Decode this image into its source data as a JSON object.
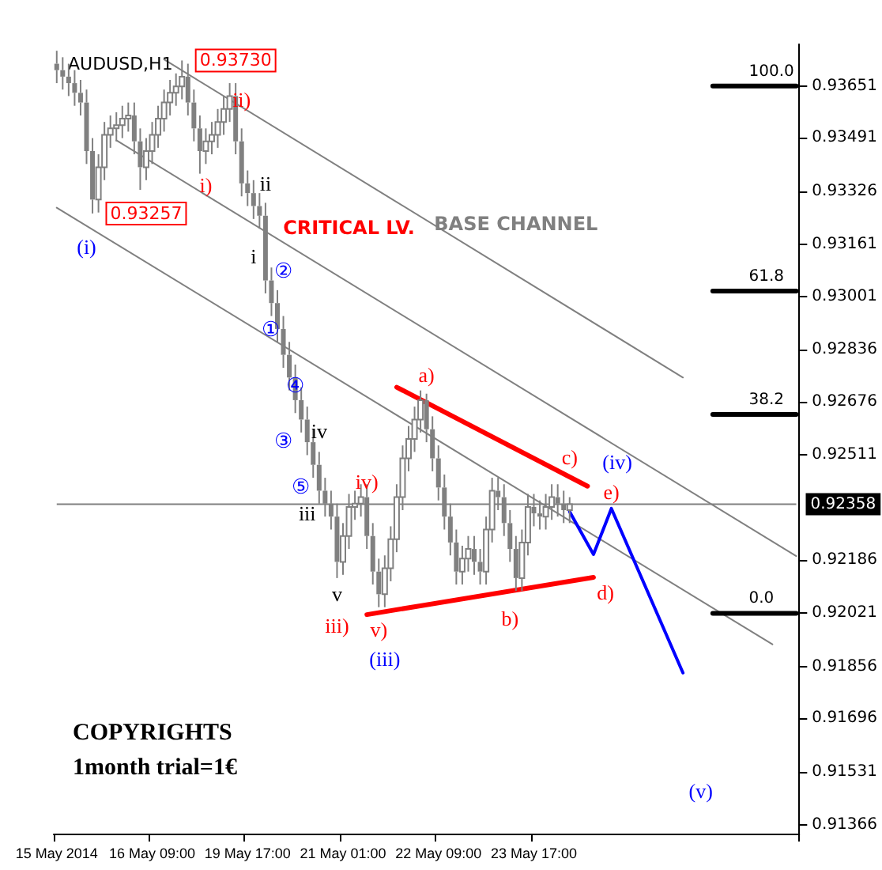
{
  "chart_data": {
    "type": "candlestick",
    "title": "AUDUSD,H1",
    "color": "#808080",
    "categories": [
      "15 May 2014",
      null,
      null,
      null,
      null,
      null,
      null,
      null,
      null,
      null,
      null,
      null,
      null,
      null,
      null,
      null,
      "16 May 09:00",
      null,
      null,
      null,
      null,
      null,
      null,
      null,
      null,
      null,
      null,
      null,
      null,
      null,
      null,
      null,
      "19 May 17:00",
      null,
      null,
      null,
      null,
      null,
      null,
      null,
      null,
      null,
      null,
      null,
      null,
      null,
      null,
      null,
      "21 May 01:00",
      null,
      null,
      null,
      null,
      null,
      null,
      null,
      null,
      null,
      null,
      null,
      null,
      null,
      null,
      null,
      "22 May 09:00",
      null,
      null,
      null,
      null,
      null,
      null,
      null,
      null,
      null,
      null,
      null,
      null,
      null,
      null,
      null,
      "23 May 17:00",
      null,
      null,
      null,
      null,
      null,
      null,
      null,
      null,
      null,
      null,
      null,
      null,
      null,
      null,
      null,
      null,
      null,
      null,
      null,
      null,
      null,
      null,
      null,
      null,
      null,
      null,
      null,
      null,
      null,
      null,
      null,
      null,
      null,
      null,
      null,
      null,
      null,
      null,
      null,
      null,
      null,
      null,
      null,
      null
    ],
    "ohlc": [
      [
        0.9372,
        0.9376,
        0.9366,
        0.937
      ],
      [
        0.937,
        0.9374,
        0.9364,
        0.9368
      ],
      [
        0.9368,
        0.9372,
        0.9362,
        0.9366
      ],
      [
        0.9366,
        0.937,
        0.9359,
        0.9363
      ],
      [
        0.9363,
        0.9367,
        0.9356,
        0.936
      ],
      [
        0.936,
        0.9364,
        0.9341,
        0.9345
      ],
      [
        0.9345,
        0.9349,
        0.93257,
        0.933
      ],
      [
        0.933,
        0.9344,
        0.9326,
        0.934
      ],
      [
        0.934,
        0.9354,
        0.9336,
        0.935
      ],
      [
        0.935,
        0.9356,
        0.9346,
        0.9352
      ],
      [
        0.9352,
        0.9357,
        0.9348,
        0.9353
      ],
      [
        0.9353,
        0.9359,
        0.9349,
        0.9355
      ],
      [
        0.9355,
        0.936,
        0.9351,
        0.9356
      ],
      [
        0.9356,
        0.936,
        0.9344,
        0.9348
      ],
      [
        0.9348,
        0.9352,
        0.9333,
        0.934
      ],
      [
        0.934,
        0.9349,
        0.9336,
        0.9345
      ],
      [
        0.9345,
        0.9354,
        0.9341,
        0.935
      ],
      [
        0.935,
        0.9359,
        0.9346,
        0.9355
      ],
      [
        0.9355,
        0.9364,
        0.9351,
        0.936
      ],
      [
        0.936,
        0.9367,
        0.9356,
        0.9363
      ],
      [
        0.9363,
        0.9369,
        0.9359,
        0.9365
      ],
      [
        0.9365,
        0.9373,
        0.9361,
        0.9368
      ],
      [
        0.9368,
        0.9372,
        0.9356,
        0.936
      ],
      [
        0.936,
        0.9364,
        0.9348,
        0.9352
      ],
      [
        0.9352,
        0.9356,
        0.9338,
        0.9345
      ],
      [
        0.9345,
        0.9352,
        0.9341,
        0.9348
      ],
      [
        0.9348,
        0.9354,
        0.9344,
        0.935
      ],
      [
        0.935,
        0.9358,
        0.9346,
        0.9354
      ],
      [
        0.9354,
        0.9362,
        0.935,
        0.9358
      ],
      [
        0.9358,
        0.9366,
        0.9354,
        0.9362
      ],
      [
        0.9362,
        0.9366,
        0.9344,
        0.9348
      ],
      [
        0.9348,
        0.9352,
        0.9331,
        0.9335
      ],
      [
        0.9335,
        0.9339,
        0.9328,
        0.9332
      ],
      [
        0.9332,
        0.9336,
        0.9324,
        0.9328
      ],
      [
        0.9328,
        0.9332,
        0.9321,
        0.9325
      ],
      [
        0.9325,
        0.9329,
        0.9301,
        0.9305
      ],
      [
        0.9305,
        0.9309,
        0.9294,
        0.9298
      ],
      [
        0.9298,
        0.9302,
        0.9286,
        0.929
      ],
      [
        0.929,
        0.9294,
        0.9278,
        0.9282
      ],
      [
        0.9282,
        0.9286,
        0.9271,
        0.9275
      ],
      [
        0.9275,
        0.9279,
        0.9264,
        0.9268
      ],
      [
        0.9268,
        0.9272,
        0.9258,
        0.9262
      ],
      [
        0.9262,
        0.9266,
        0.9251,
        0.9255
      ],
      [
        0.9255,
        0.9259,
        0.9244,
        0.9248
      ],
      [
        0.9248,
        0.9252,
        0.9236,
        0.924
      ],
      [
        0.924,
        0.9244,
        0.9232,
        0.9236
      ],
      [
        0.9236,
        0.924,
        0.9228,
        0.9232
      ],
      [
        0.9232,
        0.9236,
        0.9213,
        0.9218
      ],
      [
        0.9218,
        0.923,
        0.9214,
        0.9226
      ],
      [
        0.9226,
        0.9239,
        0.9222,
        0.9235
      ],
      [
        0.9235,
        0.924,
        0.9231,
        0.9236
      ],
      [
        0.9236,
        0.9242,
        0.9232,
        0.9238
      ],
      [
        0.9238,
        0.9242,
        0.9222,
        0.9226
      ],
      [
        0.9226,
        0.923,
        0.9211,
        0.9215
      ],
      [
        0.9215,
        0.9219,
        0.9204,
        0.9208
      ],
      [
        0.9208,
        0.922,
        0.9204,
        0.9216
      ],
      [
        0.9216,
        0.9229,
        0.9212,
        0.9225
      ],
      [
        0.9225,
        0.9242,
        0.9221,
        0.9238
      ],
      [
        0.9238,
        0.9254,
        0.9234,
        0.925
      ],
      [
        0.925,
        0.926,
        0.9246,
        0.9256
      ],
      [
        0.9256,
        0.9266,
        0.9252,
        0.9262
      ],
      [
        0.9262,
        0.9271,
        0.9258,
        0.9268
      ],
      [
        0.9268,
        0.927,
        0.9255,
        0.9259
      ],
      [
        0.9259,
        0.9263,
        0.9246,
        0.925
      ],
      [
        0.925,
        0.9254,
        0.9237,
        0.9241
      ],
      [
        0.9241,
        0.9245,
        0.9228,
        0.9232
      ],
      [
        0.9232,
        0.9236,
        0.922,
        0.9224
      ],
      [
        0.9224,
        0.9228,
        0.9211,
        0.9215
      ],
      [
        0.9215,
        0.9223,
        0.9211,
        0.9219
      ],
      [
        0.9219,
        0.9226,
        0.9215,
        0.9222
      ],
      [
        0.9222,
        0.9226,
        0.9214,
        0.9218
      ],
      [
        0.9218,
        0.9222,
        0.9211,
        0.9215
      ],
      [
        0.9215,
        0.9232,
        0.9211,
        0.9228
      ],
      [
        0.9228,
        0.9244,
        0.9224,
        0.924
      ],
      [
        0.924,
        0.9244,
        0.9234,
        0.9238
      ],
      [
        0.9238,
        0.9242,
        0.9226,
        0.923
      ],
      [
        0.923,
        0.9234,
        0.9218,
        0.9222
      ],
      [
        0.9222,
        0.9226,
        0.9209,
        0.9213
      ],
      [
        0.9213,
        0.9228,
        0.9209,
        0.9224
      ],
      [
        0.9224,
        0.9239,
        0.922,
        0.9235
      ],
      [
        0.9235,
        0.9239,
        0.9229,
        0.9233
      ],
      [
        0.9233,
        0.9237,
        0.9228,
        0.9232
      ],
      [
        0.9232,
        0.9239,
        0.9228,
        0.9235
      ],
      [
        0.9235,
        0.9242,
        0.9231,
        0.9238
      ],
      [
        0.9238,
        0.9242,
        0.9232,
        0.9236
      ],
      [
        0.9236,
        0.924,
        0.923,
        0.9234
      ],
      [
        0.9234,
        0.9238,
        0.923,
        0.92358
      ],
      null,
      null,
      null,
      null,
      null,
      null,
      null,
      null,
      null,
      null,
      null,
      null,
      null,
      null,
      null,
      null,
      null,
      null,
      null,
      null,
      null,
      null,
      null,
      null,
      null,
      null,
      null,
      null,
      null,
      null,
      null,
      null,
      null,
      null,
      null,
      null,
      null,
      null
    ],
    "series": [
      {
        "type": "line",
        "color": "#808080",
        "values": [
          null,
          null,
          null,
          null,
          null,
          null,
          null,
          null,
          null,
          null,
          null,
          null,
          null,
          null,
          null,
          null,
          null,
          null,
          0.93733,
          null,
          null,
          null,
          null,
          null,
          null,
          null,
          null,
          null,
          null,
          null,
          null,
          null,
          null,
          null,
          null,
          null,
          null,
          null,
          null,
          null,
          null,
          null,
          null,
          null,
          null,
          null,
          null,
          null,
          null,
          null,
          null,
          null,
          null,
          null,
          null,
          null,
          null,
          null,
          null,
          null,
          null,
          null,
          null,
          null,
          null,
          null,
          null,
          null,
          null,
          null,
          null,
          null,
          null,
          null,
          null,
          null,
          null,
          null,
          null,
          null,
          null,
          null,
          null,
          null,
          null,
          null,
          null,
          null,
          null,
          null,
          null,
          null,
          null,
          null,
          null,
          null,
          null,
          null,
          null,
          null,
          null,
          null,
          null,
          null,
          null,
          0.9275,
          null,
          null,
          null,
          null,
          null,
          null,
          null,
          null,
          null,
          null,
          null,
          null,
          null,
          null,
          null,
          null,
          null,
          null,
          null
        ]
      },
      {
        "type": "line",
        "color": "#808080",
        "values": [
          null,
          null,
          null,
          null,
          null,
          null,
          null,
          null,
          null,
          null,
          0.93483,
          null,
          null,
          null,
          null,
          null,
          null,
          null,
          null,
          null,
          null,
          null,
          null,
          null,
          null,
          null,
          null,
          null,
          null,
          null,
          null,
          null,
          null,
          null,
          null,
          null,
          null,
          null,
          null,
          null,
          null,
          null,
          null,
          null,
          null,
          null,
          null,
          null,
          null,
          null,
          null,
          null,
          null,
          null,
          null,
          null,
          null,
          null,
          null,
          null,
          null,
          null,
          null,
          null,
          null,
          null,
          null,
          null,
          null,
          null,
          null,
          null,
          null,
          null,
          null,
          null,
          null,
          null,
          null,
          null,
          null,
          null,
          null,
          null,
          null,
          null,
          null,
          null,
          null,
          null,
          null,
          null,
          null,
          null,
          null,
          null,
          null,
          null,
          null,
          null,
          null,
          null,
          null,
          null,
          null,
          null,
          null,
          null,
          null,
          null,
          null,
          null,
          null,
          null,
          null,
          null,
          null,
          null,
          null,
          null,
          null,
          null,
          null,
          null,
          0.92198
        ]
      },
      {
        "type": "line",
        "color": "#808080",
        "values": [
          0.93275,
          null,
          null,
          null,
          null,
          null,
          null,
          null,
          null,
          null,
          null,
          null,
          null,
          null,
          null,
          null,
          null,
          null,
          null,
          null,
          null,
          null,
          null,
          null,
          null,
          null,
          null,
          null,
          null,
          null,
          null,
          null,
          null,
          null,
          null,
          null,
          null,
          null,
          null,
          null,
          null,
          null,
          null,
          null,
          null,
          null,
          null,
          null,
          null,
          null,
          null,
          null,
          null,
          null,
          null,
          null,
          null,
          null,
          null,
          null,
          null,
          null,
          null,
          null,
          null,
          null,
          null,
          null,
          null,
          null,
          null,
          null,
          null,
          null,
          null,
          null,
          null,
          null,
          null,
          null,
          null,
          null,
          null,
          null,
          null,
          null,
          null,
          null,
          null,
          null,
          null,
          null,
          null,
          null,
          null,
          null,
          null,
          null,
          null,
          null,
          null,
          null,
          null,
          null,
          null,
          null,
          null,
          null,
          null,
          null,
          null,
          null,
          null,
          null,
          null,
          null,
          null,
          null,
          null,
          null,
          0.91925,
          null,
          null,
          null,
          null
        ]
      },
      {
        "type": "line",
        "color": "#ff0000",
        "values": [
          null,
          null,
          null,
          null,
          null,
          null,
          null,
          null,
          null,
          null,
          null,
          null,
          null,
          null,
          null,
          null,
          null,
          null,
          null,
          null,
          null,
          null,
          null,
          null,
          null,
          null,
          null,
          null,
          null,
          null,
          null,
          null,
          null,
          null,
          null,
          null,
          null,
          null,
          null,
          null,
          null,
          null,
          null,
          null,
          null,
          null,
          null,
          null,
          null,
          null,
          null,
          null,
          null,
          null,
          null,
          null,
          null,
          0.9272,
          null,
          null,
          null,
          null,
          null,
          null,
          null,
          null,
          null,
          null,
          null,
          null,
          null,
          null,
          null,
          null,
          null,
          null,
          null,
          null,
          null,
          null,
          null,
          null,
          null,
          null,
          null,
          null,
          null,
          null,
          null,
          0.92414,
          null,
          null,
          null,
          null,
          null,
          null,
          null,
          null,
          null,
          null,
          null,
          null,
          null,
          null,
          null,
          null,
          null,
          null,
          null,
          null,
          null,
          null,
          null,
          null,
          null,
          null,
          null,
          null,
          null,
          null,
          null,
          null,
          null,
          null,
          null
        ]
      },
      {
        "type": "line",
        "color": "#ff0000",
        "values": [
          null,
          null,
          null,
          null,
          null,
          null,
          null,
          null,
          null,
          null,
          null,
          null,
          null,
          null,
          null,
          null,
          null,
          null,
          null,
          null,
          null,
          null,
          null,
          null,
          null,
          null,
          null,
          null,
          null,
          null,
          null,
          null,
          null,
          null,
          null,
          null,
          null,
          null,
          null,
          null,
          null,
          null,
          null,
          null,
          null,
          null,
          null,
          null,
          null,
          null,
          null,
          null,
          0.92017,
          null,
          null,
          null,
          null,
          null,
          null,
          null,
          null,
          null,
          null,
          null,
          null,
          null,
          null,
          null,
          null,
          null,
          null,
          null,
          null,
          null,
          null,
          null,
          null,
          null,
          null,
          null,
          null,
          null,
          null,
          null,
          null,
          null,
          null,
          null,
          null,
          null,
          0.92132,
          null,
          null,
          null,
          null,
          null,
          null,
          null,
          null,
          null,
          null,
          null,
          null,
          null,
          null,
          null,
          null,
          null,
          null,
          null,
          null,
          null,
          null,
          null,
          null,
          null,
          null,
          null,
          null,
          null,
          null,
          null,
          null,
          null,
          null
        ]
      },
      {
        "type": "line",
        "color": "#0000ff",
        "values": [
          null,
          null,
          null,
          null,
          null,
          null,
          null,
          null,
          null,
          null,
          null,
          null,
          null,
          null,
          null,
          null,
          null,
          null,
          null,
          null,
          null,
          null,
          null,
          null,
          null,
          null,
          null,
          null,
          null,
          null,
          null,
          null,
          null,
          null,
          null,
          null,
          null,
          null,
          null,
          null,
          null,
          null,
          null,
          null,
          null,
          null,
          null,
          null,
          null,
          null,
          null,
          null,
          null,
          null,
          null,
          null,
          null,
          null,
          null,
          null,
          null,
          null,
          null,
          null,
          null,
          null,
          null,
          null,
          null,
          null,
          null,
          null,
          null,
          null,
          null,
          null,
          null,
          null,
          null,
          null,
          null,
          null,
          null,
          null,
          null,
          null,
          0.92335,
          null,
          null,
          null,
          0.92203,
          null,
          null,
          0.92345,
          null,
          null,
          null,
          null,
          null,
          null,
          null,
          null,
          null,
          null,
          null,
          0.91837,
          null,
          null,
          null,
          null,
          null,
          null,
          null,
          null,
          null,
          null,
          null,
          null,
          null,
          null,
          null,
          null,
          null,
          null,
          null
        ]
      },
      {
        "type": "line",
        "name": "100.0",
        "color": "#000000",
        "values": [
          null,
          null,
          null,
          null,
          null,
          null,
          null,
          null,
          null,
          null,
          null,
          null,
          null,
          null,
          null,
          null,
          null,
          null,
          null,
          null,
          null,
          null,
          null,
          null,
          null,
          null,
          null,
          null,
          null,
          null,
          null,
          null,
          null,
          null,
          null,
          null,
          null,
          null,
          null,
          null,
          null,
          null,
          null,
          null,
          null,
          null,
          null,
          null,
          null,
          null,
          null,
          null,
          null,
          null,
          null,
          null,
          null,
          null,
          null,
          null,
          null,
          null,
          null,
          null,
          null,
          null,
          null,
          null,
          null,
          null,
          null,
          null,
          null,
          null,
          null,
          null,
          null,
          null,
          null,
          null,
          null,
          null,
          null,
          null,
          null,
          null,
          null,
          null,
          null,
          null,
          null,
          null,
          null,
          null,
          null,
          null,
          null,
          null,
          null,
          null,
          null,
          null,
          null,
          null,
          null,
          null,
          null,
          null,
          null,
          null,
          0.93651,
          null,
          null,
          null,
          null,
          null,
          null,
          null,
          null,
          null,
          null,
          null,
          null,
          null,
          0.93651
        ]
      },
      {
        "type": "line",
        "name": "61.8",
        "color": "#000000",
        "values": [
          null,
          null,
          null,
          null,
          null,
          null,
          null,
          null,
          null,
          null,
          null,
          null,
          null,
          null,
          null,
          null,
          null,
          null,
          null,
          null,
          null,
          null,
          null,
          null,
          null,
          null,
          null,
          null,
          null,
          null,
          null,
          null,
          null,
          null,
          null,
          null,
          null,
          null,
          null,
          null,
          null,
          null,
          null,
          null,
          null,
          null,
          null,
          null,
          null,
          null,
          null,
          null,
          null,
          null,
          null,
          null,
          null,
          null,
          null,
          null,
          null,
          null,
          null,
          null,
          null,
          null,
          null,
          null,
          null,
          null,
          null,
          null,
          null,
          null,
          null,
          null,
          null,
          null,
          null,
          null,
          null,
          null,
          null,
          null,
          null,
          null,
          null,
          null,
          null,
          null,
          null,
          null,
          null,
          null,
          null,
          null,
          null,
          null,
          null,
          null,
          null,
          null,
          null,
          null,
          null,
          null,
          null,
          null,
          null,
          null,
          0.93017,
          null,
          null,
          null,
          null,
          null,
          null,
          null,
          null,
          null,
          null,
          null,
          null,
          null,
          0.93017
        ]
      },
      {
        "type": "line",
        "name": "38.2",
        "color": "#000000",
        "values": [
          null,
          null,
          null,
          null,
          null,
          null,
          null,
          null,
          null,
          null,
          null,
          null,
          null,
          null,
          null,
          null,
          null,
          null,
          null,
          null,
          null,
          null,
          null,
          null,
          null,
          null,
          null,
          null,
          null,
          null,
          null,
          null,
          null,
          null,
          null,
          null,
          null,
          null,
          null,
          null,
          null,
          null,
          null,
          null,
          null,
          null,
          null,
          null,
          null,
          null,
          null,
          null,
          null,
          null,
          null,
          null,
          null,
          null,
          null,
          null,
          null,
          null,
          null,
          null,
          null,
          null,
          null,
          null,
          null,
          null,
          null,
          null,
          null,
          null,
          null,
          null,
          null,
          null,
          null,
          null,
          null,
          null,
          null,
          null,
          null,
          null,
          null,
          null,
          null,
          null,
          null,
          null,
          null,
          null,
          null,
          null,
          null,
          null,
          null,
          null,
          null,
          null,
          null,
          null,
          null,
          null,
          null,
          null,
          null,
          null,
          0.92636,
          null,
          null,
          null,
          null,
          null,
          null,
          null,
          null,
          null,
          null,
          null,
          null,
          null,
          0.92636
        ]
      },
      {
        "type": "line",
        "name": "0.0",
        "color": "#000000",
        "values": [
          null,
          null,
          null,
          null,
          null,
          null,
          null,
          null,
          null,
          null,
          null,
          null,
          null,
          null,
          null,
          null,
          null,
          null,
          null,
          null,
          null,
          null,
          null,
          null,
          null,
          null,
          null,
          null,
          null,
          null,
          null,
          null,
          null,
          null,
          null,
          null,
          null,
          null,
          null,
          null,
          null,
          null,
          null,
          null,
          null,
          null,
          null,
          null,
          null,
          null,
          null,
          null,
          null,
          null,
          null,
          null,
          null,
          null,
          null,
          null,
          null,
          null,
          null,
          null,
          null,
          null,
          null,
          null,
          null,
          null,
          null,
          null,
          null,
          null,
          null,
          null,
          null,
          null,
          null,
          null,
          null,
          null,
          null,
          null,
          null,
          null,
          null,
          null,
          null,
          null,
          null,
          null,
          null,
          null,
          null,
          null,
          null,
          null,
          null,
          null,
          null,
          null,
          null,
          null,
          null,
          null,
          null,
          null,
          null,
          null,
          0.92021,
          null,
          null,
          null,
          null,
          null,
          null,
          null,
          null,
          null,
          null,
          null,
          null,
          null,
          0.92021
        ]
      }
    ],
    "ref_lines": [
      {
        "axis": "y",
        "value": 0.92358,
        "label": "0.92358",
        "color": "#808080"
      }
    ],
    "annotations": [
      "(i)",
      "0.93257",
      "0.93730",
      "ii)",
      "i)",
      "ii",
      "i",
      "②",
      "①",
      "④",
      "③",
      "iv",
      "⑤",
      "iii",
      "v",
      "iii)",
      "iv)",
      "v)",
      "(iii)",
      "a)",
      "b)",
      "c)",
      "d)",
      "e)",
      "(iv)",
      "(v)",
      "CRITICAL LV.",
      "BASE CHANNEL",
      "COPYRIGHTS",
      "1month trial=1€"
    ],
    "ylim": [
      0.9134,
      0.9378
    ],
    "yticks": [
      0.93651,
      0.93491,
      0.93326,
      0.93161,
      0.93001,
      0.92836,
      0.92676,
      0.92511,
      0.92186,
      0.92021,
      0.91856,
      0.91696,
      0.91531,
      0.91366
    ],
    "grid": false,
    "marker": "none"
  }
}
